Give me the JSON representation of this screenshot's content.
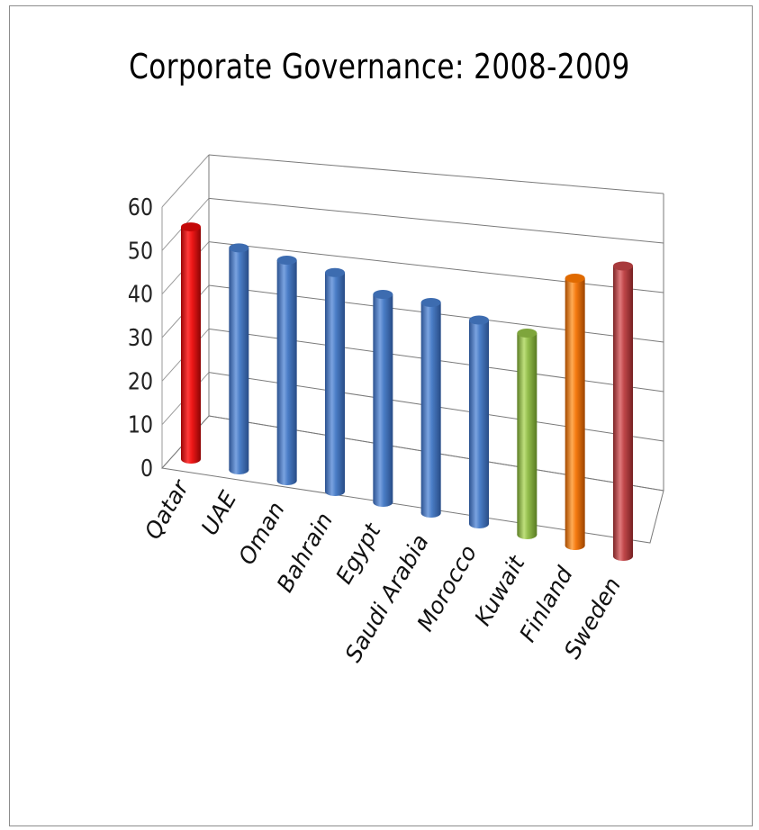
{
  "chart_data": {
    "type": "bar",
    "title": "Corporate Governance: 2008-2009",
    "categories": [
      "Qatar",
      "UAE",
      "Oman",
      "Bahrain",
      "Egypt",
      "Saudi Arabia",
      "Morocco",
      "Kuwait",
      "Finland",
      "Sweden"
    ],
    "values": [
      53,
      50,
      49,
      48,
      45,
      45,
      43,
      42,
      55,
      59
    ],
    "yticks": [
      "0",
      "10",
      "20",
      "30",
      "40",
      "50",
      "60"
    ],
    "ylim": [
      0,
      60
    ],
    "grid": true,
    "legend": "none",
    "colors": {
      "Qatar": "#e81010",
      "UAE": "#4a7dc6",
      "Oman": "#4a7dc6",
      "Bahrain": "#4a7dc6",
      "Egypt": "#4a7dc6",
      "Saudi Arabia": "#4a7dc6",
      "Morocco": "#4a7dc6",
      "Kuwait": "#93bd4c",
      "Finland": "#f57a10",
      "Sweden": "#c0474a"
    }
  }
}
